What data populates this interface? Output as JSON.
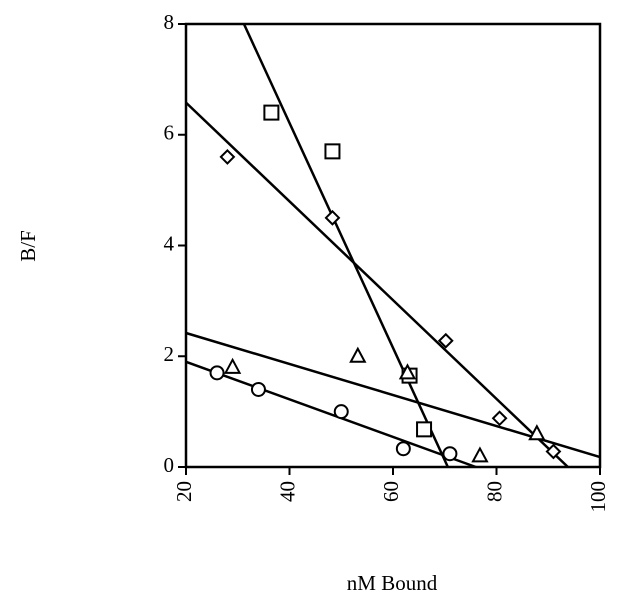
{
  "chart_data": {
    "type": "scatter",
    "title": "",
    "xlabel": "nM Bound",
    "ylabel": "B/F",
    "xlim": [
      20,
      100
    ],
    "ylim": [
      0,
      8
    ],
    "xticks": [
      20,
      40,
      60,
      80,
      100
    ],
    "yticks": [
      0,
      2,
      4,
      6,
      8
    ],
    "grid": false,
    "legend": "none",
    "series": [
      {
        "marker": "square",
        "points": [
          [
            36.5,
            6.4
          ],
          [
            48.3,
            5.7
          ],
          [
            63.2,
            1.65
          ],
          [
            66.0,
            0.68
          ]
        ],
        "fit": [
          [
            31.2,
            8.0
          ],
          [
            70.6,
            0.0
          ]
        ]
      },
      {
        "marker": "diamond",
        "points": [
          [
            28.0,
            5.6
          ],
          [
            48.3,
            4.5
          ],
          [
            70.2,
            2.28
          ],
          [
            80.6,
            0.88
          ],
          [
            91.0,
            0.28
          ]
        ],
        "fit": [
          [
            20.0,
            6.58
          ],
          [
            93.8,
            0.0
          ]
        ]
      },
      {
        "marker": "triangle",
        "points": [
          [
            29.0,
            1.8
          ],
          [
            53.2,
            2.0
          ],
          [
            62.8,
            1.7
          ],
          [
            76.8,
            0.2
          ],
          [
            87.8,
            0.6
          ]
        ],
        "fit": [
          [
            20.0,
            2.42
          ],
          [
            100.0,
            0.18
          ]
        ]
      },
      {
        "marker": "circle",
        "points": [
          [
            26.0,
            1.7
          ],
          [
            34.0,
            1.4
          ],
          [
            50.0,
            1.0
          ],
          [
            62.0,
            0.33
          ],
          [
            71.0,
            0.24
          ]
        ],
        "fit": [
          [
            20.0,
            1.9
          ],
          [
            76.0,
            0.0
          ]
        ]
      }
    ]
  }
}
